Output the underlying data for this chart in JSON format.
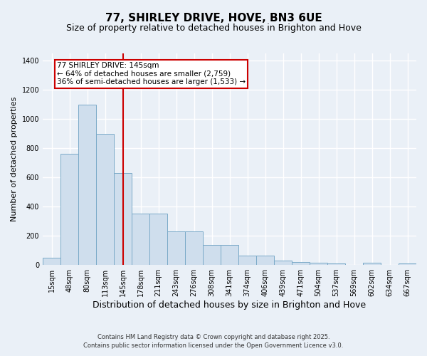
{
  "title": "77, SHIRLEY DRIVE, HOVE, BN3 6UE",
  "subtitle": "Size of property relative to detached houses in Brighton and Hove",
  "xlabel": "Distribution of detached houses by size in Brighton and Hove",
  "ylabel": "Number of detached properties",
  "footer": "Contains HM Land Registry data © Crown copyright and database right 2025.\nContains public sector information licensed under the Open Government Licence v3.0.",
  "categories": [
    "15sqm",
    "48sqm",
    "80sqm",
    "113sqm",
    "145sqm",
    "178sqm",
    "211sqm",
    "243sqm",
    "276sqm",
    "308sqm",
    "341sqm",
    "374sqm",
    "406sqm",
    "439sqm",
    "471sqm",
    "504sqm",
    "537sqm",
    "569sqm",
    "602sqm",
    "634sqm",
    "667sqm"
  ],
  "values": [
    50,
    760,
    1100,
    900,
    630,
    350,
    350,
    230,
    230,
    140,
    140,
    65,
    65,
    30,
    20,
    15,
    10,
    0,
    15,
    0,
    10
  ],
  "bar_color": "#cfdeed",
  "bar_edge_color": "#7aaac8",
  "property_line_index": 4,
  "property_line_color": "#cc0000",
  "annotation_box_color": "#cc0000",
  "annotation_text": "77 SHIRLEY DRIVE: 145sqm\n← 64% of detached houses are smaller (2,759)\n36% of semi-detached houses are larger (1,533) →",
  "ylim": [
    0,
    1450
  ],
  "yticks": [
    0,
    200,
    400,
    600,
    800,
    1000,
    1200,
    1400
  ],
  "bg_color": "#eaf0f7",
  "plot_bg_color": "#eaf0f7",
  "grid_color": "#ffffff",
  "title_fontsize": 11,
  "subtitle_fontsize": 9,
  "xlabel_fontsize": 9,
  "ylabel_fontsize": 8,
  "tick_fontsize": 7,
  "annotation_fontsize": 7.5,
  "footer_fontsize": 6
}
